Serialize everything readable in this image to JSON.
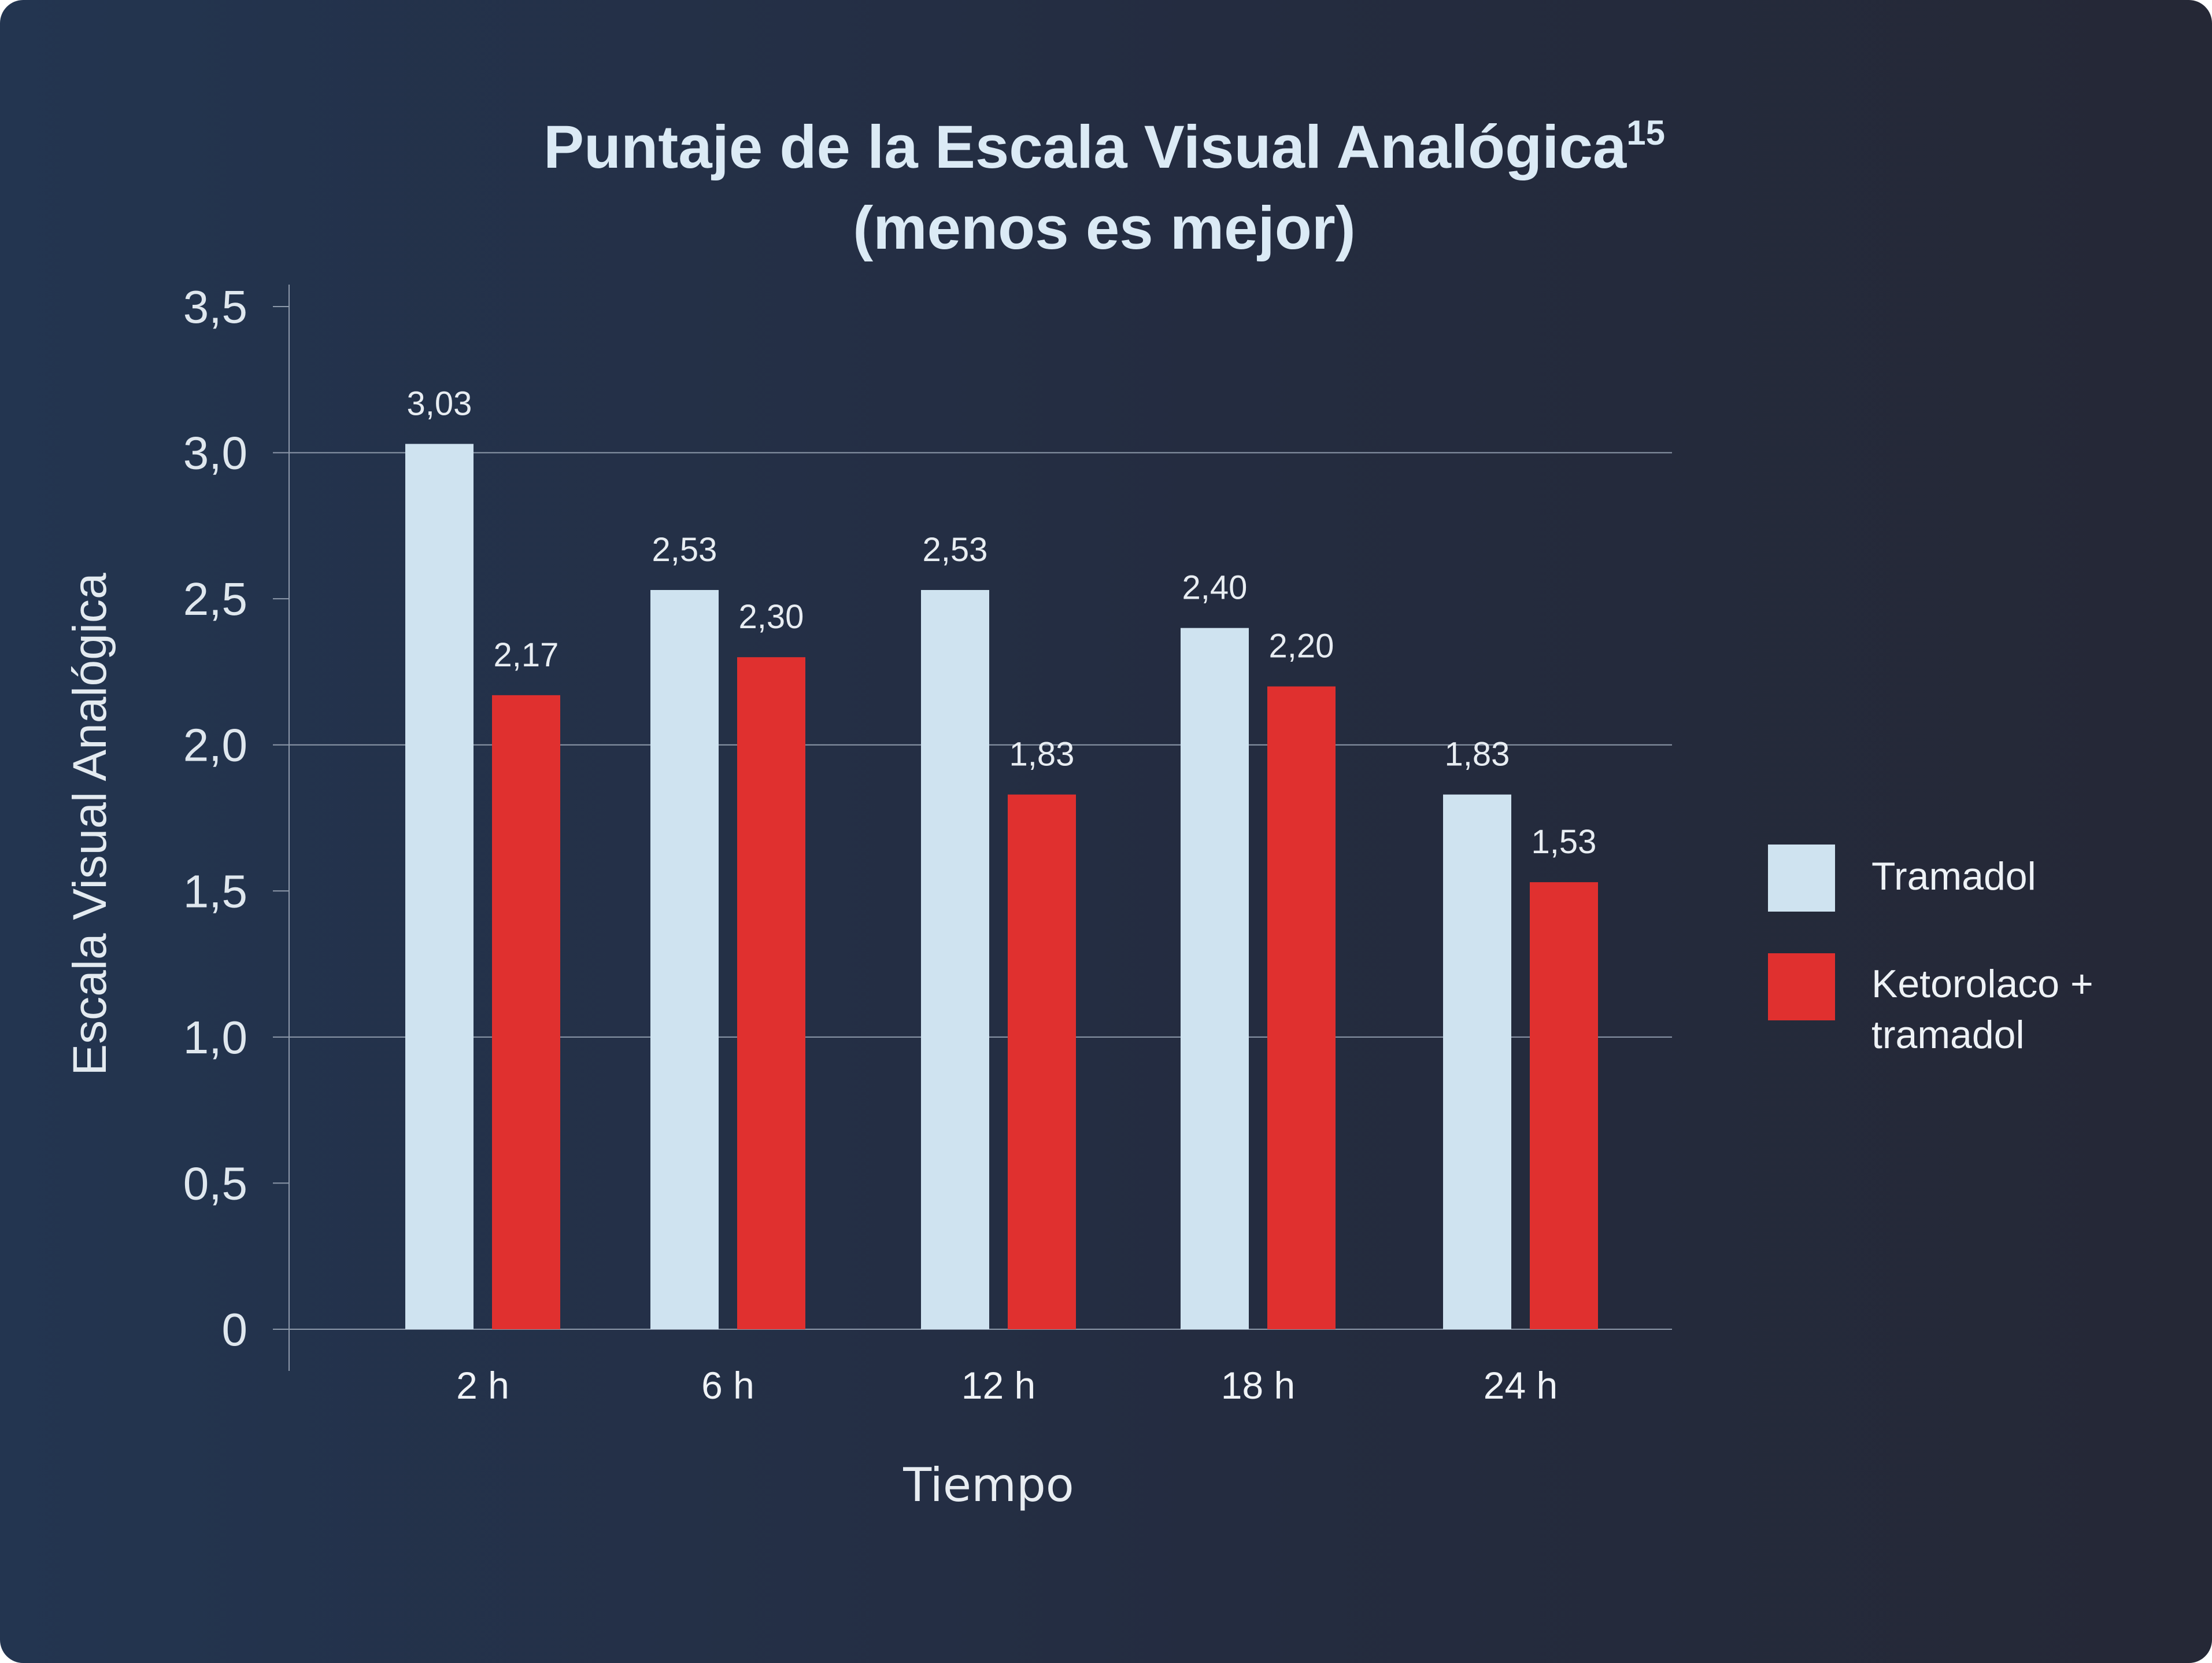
{
  "chart_data": {
    "type": "bar",
    "title": {
      "line1": "Puntaje de la Escala Visual Analógica",
      "superscript": "15",
      "line2": "(menos es mejor)"
    },
    "xlabel": "Tiempo",
    "ylabel": "Escala Visual Analógica",
    "categories": [
      "2 h",
      "6 h",
      "12 h",
      "18 h",
      "24 h"
    ],
    "series": [
      {
        "name": "Tramadol",
        "color": "#cfe3f0",
        "values": [
          3.03,
          2.53,
          2.53,
          2.4,
          1.83
        ],
        "value_labels": [
          "3,03",
          "2,53",
          "2,53",
          "2,40",
          "1,83"
        ]
      },
      {
        "name": "Ketorolaco + tramadol",
        "legend_lines": [
          "Ketorolaco +",
          "tramadol"
        ],
        "color": "#e0302f",
        "values": [
          2.17,
          2.3,
          1.83,
          2.2,
          1.53
        ],
        "value_labels": [
          "2,17",
          "2,30",
          "1,83",
          "2,20",
          "1,53"
        ]
      }
    ],
    "ylim": [
      0,
      3.5
    ],
    "yticks": [
      0,
      0.5,
      1.0,
      1.5,
      2.0,
      2.5,
      3.0,
      3.5
    ],
    "ytick_labels": [
      "0",
      "0,5",
      "1,0",
      "1,5",
      "2,0",
      "2,5",
      "3,0",
      "3,5"
    ],
    "gridlines_at": [
      0,
      1.0,
      2.0,
      3.0
    ],
    "grid": true,
    "legend_position": "right"
  }
}
